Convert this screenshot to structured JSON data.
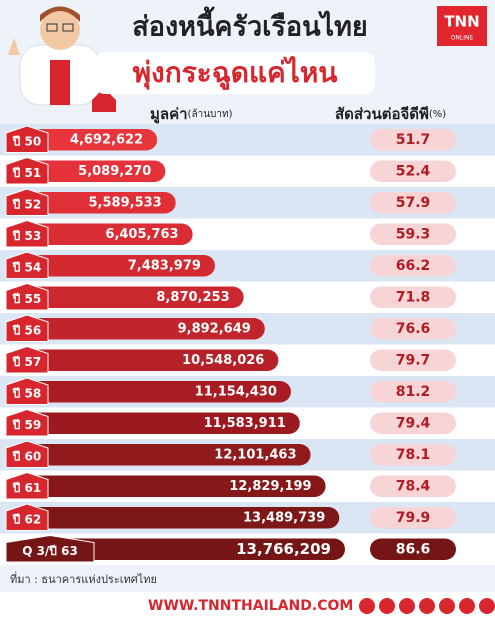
{
  "chart_data": {
    "type": "bar",
    "orientation": "horizontal",
    "title": "ส่องหนี้ครัวเรือนไทย",
    "subtitle": "พุ่งกระฉูดแค่ไหน",
    "logo": "TNN",
    "logo_sub": "ONLINE",
    "categories": [
      "ปี 50",
      "ปี 51",
      "ปี 52",
      "ปี 53",
      "ปี 54",
      "ปี 55",
      "ปี 56",
      "ปี 57",
      "ปี 58",
      "ปี 59",
      "ปี 60",
      "ปี 61",
      "ปี 62",
      "Q 3/ปี 63"
    ],
    "series": [
      {
        "name": "มูลค่า",
        "unit": "(ล้านบาท)",
        "colors": [
          "#e8343b",
          "#e5323a",
          "#e02f37",
          "#da2c34",
          "#d32a31",
          "#cb272e",
          "#c2242b",
          "#b62027",
          "#a91c23",
          "#9c1a1f",
          "#901a1c",
          "#86181a",
          "#7e1718",
          "#761516"
        ],
        "values": [
          4692622,
          5089270,
          5589533,
          6405763,
          7483979,
          8870253,
          9892649,
          10548026,
          11154430,
          11583911,
          12101463,
          12829199,
          13489739,
          13766209
        ],
        "value_labels": [
          "4,692,622",
          "5,089,270",
          "5,589,533",
          "6,405,763",
          "7,483,979",
          "8,870,253",
          "9,892,649",
          "10,548,026",
          "11,154,430",
          "11,583,911",
          "12,101,463",
          "12,829,199",
          "13,489,739",
          "13,766,209"
        ]
      },
      {
        "name": "สัดส่วนต่อจีดีพี",
        "unit": "(%)",
        "color": "#f7d4d6",
        "values": [
          51.7,
          52.4,
          57.9,
          59.3,
          66.2,
          71.8,
          76.6,
          79.7,
          81.2,
          79.4,
          78.1,
          78.4,
          79.9,
          86.6
        ]
      }
    ],
    "source": "ที่มา : ธนาคารแห่งประเทศไทย",
    "footer": "WWW.TNNTHAILAND.COM"
  }
}
